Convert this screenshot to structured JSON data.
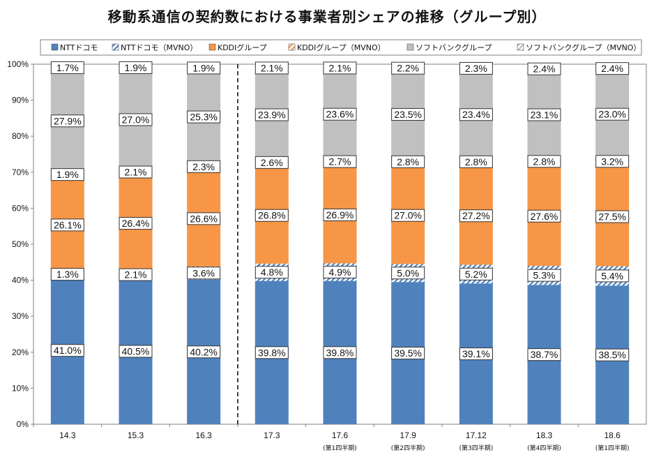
{
  "chart_data": {
    "type": "bar",
    "stacked": true,
    "title": "移動系通信の契約数における事業者別シェアの推移（グループ別）",
    "ylim": [
      0,
      100
    ],
    "yticks": [
      "0%",
      "10%",
      "20%",
      "30%",
      "40%",
      "50%",
      "60%",
      "70%",
      "80%",
      "90%",
      "100%"
    ],
    "categories": [
      "14.3",
      "15.3",
      "16.3",
      "17.3",
      "17.6",
      "17.9",
      "17.12",
      "18.3",
      "18.6"
    ],
    "category_notes": [
      "",
      "",
      "",
      "",
      "(第1四半期)",
      "(第2四半期)",
      "(第3四半期)",
      "(第4四半期)",
      "(第1四半期)"
    ],
    "divider_after_index": 2,
    "legend_position": "top",
    "series": [
      {
        "name": "NTTドコモ",
        "color": "#4f81bd",
        "pattern": "solid",
        "values": [
          41.0,
          40.5,
          40.2,
          39.8,
          39.8,
          39.5,
          39.1,
          38.7,
          38.5
        ],
        "labels": [
          "41.0%",
          "40.5%",
          "40.2%",
          "39.8%",
          "39.8%",
          "39.5%",
          "39.1%",
          "38.7%",
          "38.5%"
        ]
      },
      {
        "name": "NTTドコモ（MVNO）",
        "color": "#4f81bd",
        "pattern": "hatch",
        "values": [
          1.3,
          2.1,
          3.6,
          4.8,
          4.9,
          5.0,
          5.2,
          5.3,
          5.4
        ],
        "labels": [
          "1.3%",
          "2.1%",
          "3.6%",
          "4.8%",
          "4.9%",
          "5.0%",
          "5.2%",
          "5.3%",
          "5.4%"
        ]
      },
      {
        "name": "KDDIグループ",
        "color": "#f79646",
        "pattern": "solid",
        "values": [
          26.1,
          26.4,
          26.6,
          26.8,
          26.9,
          27.0,
          27.2,
          27.6,
          27.5
        ],
        "labels": [
          "26.1%",
          "26.4%",
          "26.6%",
          "26.8%",
          "26.9%",
          "27.0%",
          "27.2%",
          "27.6%",
          "27.5%"
        ]
      },
      {
        "name": "KDDIグループ（MVNO）",
        "color": "#f79646",
        "pattern": "hatch",
        "values": [
          1.9,
          2.1,
          2.3,
          2.6,
          2.7,
          2.8,
          2.8,
          2.8,
          3.2
        ],
        "labels": [
          "1.9%",
          "2.1%",
          "2.3%",
          "2.6%",
          "2.7%",
          "2.8%",
          "2.8%",
          "2.8%",
          "3.2%"
        ]
      },
      {
        "name": "ソフトバンクグループ",
        "color": "#c0c0c0",
        "pattern": "solid",
        "values": [
          27.9,
          27.0,
          25.3,
          23.9,
          23.6,
          23.5,
          23.4,
          23.1,
          23.0
        ],
        "labels": [
          "27.9%",
          "27.0%",
          "25.3%",
          "23.9%",
          "23.6%",
          "23.5%",
          "23.4%",
          "23.1%",
          "23.0%"
        ]
      },
      {
        "name": "ソフトバンクグループ（MVNO）",
        "color": "#c0c0c0",
        "pattern": "hatch",
        "values": [
          1.7,
          1.9,
          1.9,
          2.1,
          2.1,
          2.2,
          2.3,
          2.4,
          2.4
        ],
        "labels": [
          "1.7%",
          "1.9%",
          "1.9%",
          "2.1%",
          "2.1%",
          "2.2%",
          "2.3%",
          "2.4%",
          "2.4%"
        ]
      }
    ]
  }
}
